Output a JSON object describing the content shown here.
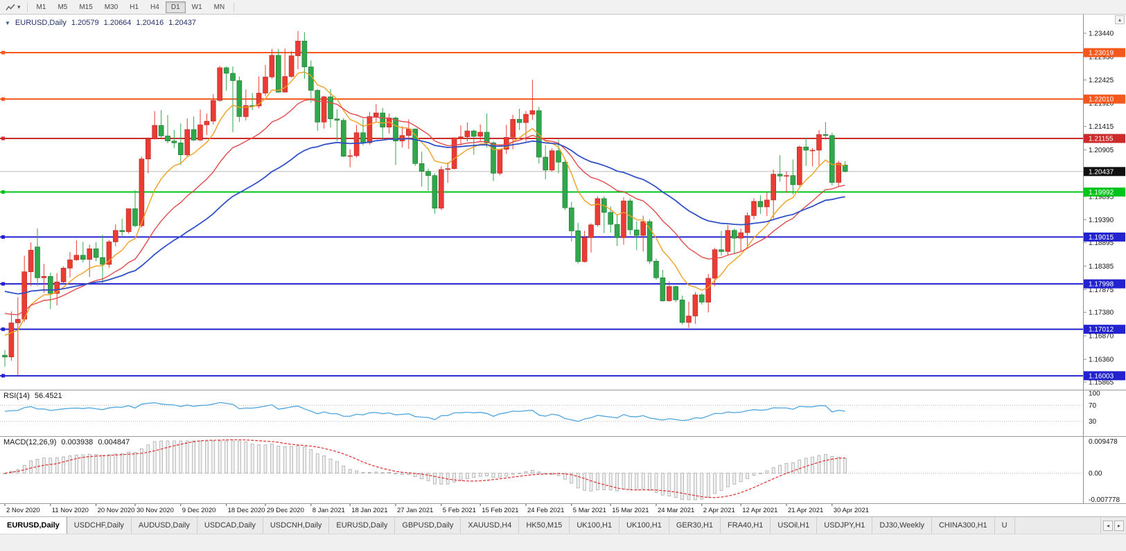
{
  "toolbar": {
    "timeframes": [
      "M1",
      "M5",
      "M15",
      "M30",
      "H1",
      "H4",
      "D1",
      "W1",
      "MN"
    ],
    "active": "D1"
  },
  "icons": {
    "symbol_dropdown": "▼",
    "tool_caret": "▾",
    "scroll_up": "▴",
    "tab_left": "◂",
    "tab_right": "▸"
  },
  "header": {
    "symbol": "EURUSD,Daily",
    "open": "1.20579",
    "high": "1.20664",
    "low": "1.20416",
    "close": "1.20437"
  },
  "chart_data": {
    "type": "candlestick",
    "symbol": "EURUSD",
    "timeframe": "Daily",
    "price_axis_ticks": [
      "1.23440",
      "1.22930",
      "1.22425",
      "1.21920",
      "1.21415",
      "1.20905",
      "1.20400",
      "1.19895",
      "1.19390",
      "1.18895",
      "1.18385",
      "1.17875",
      "1.17380",
      "1.16870",
      "1.16360",
      "1.15865"
    ],
    "current_price": {
      "value": 1.20437,
      "label": "1.20437",
      "color": "#101010"
    },
    "hlines": [
      {
        "value": 1.23019,
        "label": "1.23019",
        "color": "#f4581d"
      },
      {
        "value": 1.2201,
        "label": "1.22010",
        "color": "#f4581d"
      },
      {
        "value": 1.21155,
        "label": "1.21155",
        "color": "#cc2b2b"
      },
      {
        "value": 1.19992,
        "label": "1.19992",
        "color": "#00c41c"
      },
      {
        "value": 1.19015,
        "label": "1.19015",
        "color": "#2222cf"
      },
      {
        "value": 1.17998,
        "label": "1.17998",
        "color": "#2222cf"
      },
      {
        "value": 1.17012,
        "label": "1.17012",
        "color": "#2222cf"
      },
      {
        "value": 1.16003,
        "label": "1.16003",
        "color": "#2222cf"
      }
    ],
    "candle_colors": {
      "up": "#ea3b34",
      "up_border": "#b42a20",
      "down": "#31a74c",
      "down_border": "#1f7434"
    },
    "moving_averages": [
      {
        "name": "ma-fast",
        "color": "#f0a020"
      },
      {
        "name": "ma-medium",
        "color": "#e24a4a"
      },
      {
        "name": "ma-slow",
        "color": "#3050c8"
      }
    ],
    "date_ticks": [
      {
        "label": "2 Nov 2020",
        "i": 0
      },
      {
        "label": "11 Nov 2020",
        "i": 7
      },
      {
        "label": "20 Nov 2020",
        "i": 14
      },
      {
        "label": "30 Nov 2020",
        "i": 20
      },
      {
        "label": "9 Dec 2020",
        "i": 27
      },
      {
        "label": "18 Dec 2020",
        "i": 34
      },
      {
        "label": "29 Dec 2020",
        "i": 40
      },
      {
        "label": "8 Jan 2021",
        "i": 47
      },
      {
        "label": "18 Jan 2021",
        "i": 53
      },
      {
        "label": "27 Jan 2021",
        "i": 60
      },
      {
        "label": "5 Feb 2021",
        "i": 67
      },
      {
        "label": "15 Feb 2021",
        "i": 73
      },
      {
        "label": "24 Feb 2021",
        "i": 80
      },
      {
        "label": "5 Mar 2021",
        "i": 87
      },
      {
        "label": "15 Mar 2021",
        "i": 93
      },
      {
        "label": "24 Mar 2021",
        "i": 100
      },
      {
        "label": "2 Apr 2021",
        "i": 107
      },
      {
        "label": "12 Apr 2021",
        "i": 113
      },
      {
        "label": "21 Apr 2021",
        "i": 120
      },
      {
        "label": "30 Apr 2021",
        "i": 127
      }
    ],
    "candles": [
      [
        1.1645,
        1.1656,
        1.162,
        1.1641
      ],
      [
        1.1641,
        1.174,
        1.1633,
        1.1715
      ],
      [
        1.1715,
        1.1771,
        1.1602,
        1.1723
      ],
      [
        1.1723,
        1.1861,
        1.1717,
        1.1826
      ],
      [
        1.1826,
        1.189,
        1.1795,
        1.1873
      ],
      [
        1.188,
        1.192,
        1.1795,
        1.1813
      ],
      [
        1.1813,
        1.1843,
        1.178,
        1.1816
      ],
      [
        1.1816,
        1.1824,
        1.1745,
        1.1779
      ],
      [
        1.1779,
        1.1823,
        1.1753,
        1.1804
      ],
      [
        1.1804,
        1.1838,
        1.1799,
        1.1834
      ],
      [
        1.1834,
        1.1869,
        1.1814,
        1.1852
      ],
      [
        1.1852,
        1.1894,
        1.185,
        1.1862
      ],
      [
        1.1862,
        1.1891,
        1.1846,
        1.1853
      ],
      [
        1.1853,
        1.1885,
        1.1815,
        1.1876
      ],
      [
        1.1876,
        1.189,
        1.1849,
        1.1857
      ],
      [
        1.1857,
        1.1906,
        1.18,
        1.1842
      ],
      [
        1.1842,
        1.1895,
        1.1835,
        1.1891
      ],
      [
        1.1891,
        1.1929,
        1.1881,
        1.1916
      ],
      [
        1.1916,
        1.1941,
        1.1904,
        1.1913
      ],
      [
        1.1913,
        1.1963,
        1.1909,
        1.1963
      ],
      [
        1.1963,
        1.2003,
        1.1923,
        1.1926
      ],
      [
        1.1926,
        1.2076,
        1.1922,
        1.2071
      ],
      [
        1.2071,
        1.2118,
        1.204,
        1.2115
      ],
      [
        1.2115,
        1.2175,
        1.2113,
        1.2144
      ],
      [
        1.2144,
        1.2177,
        1.2116,
        1.2121
      ],
      [
        1.2121,
        1.2166,
        1.2105,
        1.211
      ],
      [
        1.211,
        1.2134,
        1.2095,
        1.2106
      ],
      [
        1.2106,
        1.2148,
        1.2058,
        1.208
      ],
      [
        1.208,
        1.2159,
        1.2076,
        1.2135
      ],
      [
        1.2135,
        1.2163,
        1.211,
        1.2112
      ],
      [
        1.2112,
        1.2178,
        1.211,
        1.2145
      ],
      [
        1.2145,
        1.217,
        1.2123,
        1.2153
      ],
      [
        1.2153,
        1.2212,
        1.2146,
        1.2198
      ],
      [
        1.2198,
        1.2273,
        1.2195,
        1.2269
      ],
      [
        1.2269,
        1.2272,
        1.2219,
        1.2257
      ],
      [
        1.2257,
        1.2272,
        1.2129,
        1.2241
      ],
      [
        1.2241,
        1.225,
        1.2151,
        1.2163
      ],
      [
        1.2163,
        1.2222,
        1.2155,
        1.2187
      ],
      [
        1.2187,
        1.2214,
        1.2177,
        1.2186
      ],
      [
        1.2186,
        1.225,
        1.2181,
        1.2214
      ],
      [
        1.2214,
        1.2275,
        1.2208,
        1.2249
      ],
      [
        1.2249,
        1.231,
        1.2245,
        1.2296
      ],
      [
        1.2296,
        1.231,
        1.2214,
        1.2216
      ],
      [
        1.2216,
        1.2311,
        1.2216,
        1.225
      ],
      [
        1.225,
        1.2305,
        1.2247,
        1.2295
      ],
      [
        1.2295,
        1.2349,
        1.2266,
        1.2327
      ],
      [
        1.2327,
        1.2346,
        1.2245,
        1.2271
      ],
      [
        1.2271,
        1.2285,
        1.2193,
        1.222
      ],
      [
        1.222,
        1.2223,
        1.2132,
        1.2151
      ],
      [
        1.2151,
        1.2208,
        1.2137,
        1.2206
      ],
      [
        1.2206,
        1.2223,
        1.2139,
        1.2158
      ],
      [
        1.2158,
        1.2179,
        1.211,
        1.2155
      ],
      [
        1.2155,
        1.216,
        1.2075,
        1.2077
      ],
      [
        1.2077,
        1.2092,
        1.2053,
        1.2078
      ],
      [
        1.2078,
        1.2145,
        1.2074,
        1.2128
      ],
      [
        1.2128,
        1.2158,
        1.2101,
        1.2106
      ],
      [
        1.2106,
        1.2173,
        1.2102,
        1.2163
      ],
      [
        1.2163,
        1.219,
        1.215,
        1.2171
      ],
      [
        1.2171,
        1.2182,
        1.2116,
        1.214
      ],
      [
        1.214,
        1.217,
        1.2126,
        1.216
      ],
      [
        1.216,
        1.2163,
        1.2058,
        1.211
      ],
      [
        1.211,
        1.2142,
        1.2096,
        1.2122
      ],
      [
        1.2122,
        1.2157,
        1.2093,
        1.2136
      ],
      [
        1.2136,
        1.2137,
        1.2056,
        1.2061
      ],
      [
        1.2061,
        1.2087,
        1.2011,
        1.2044
      ],
      [
        1.2044,
        1.205,
        1.2002,
        1.2035
      ],
      [
        1.2035,
        1.204,
        1.1952,
        1.1964
      ],
      [
        1.1964,
        1.2055,
        1.196,
        1.2048
      ],
      [
        1.2048,
        1.2064,
        1.2019,
        1.205
      ],
      [
        1.205,
        1.2118,
        1.2048,
        1.2117
      ],
      [
        1.2117,
        1.2144,
        1.21,
        1.2119
      ],
      [
        1.2119,
        1.215,
        1.2109,
        1.2132
      ],
      [
        1.2132,
        1.2135,
        1.208,
        1.212
      ],
      [
        1.212,
        1.2146,
        1.211,
        1.2129
      ],
      [
        1.2129,
        1.217,
        1.2096,
        1.2106
      ],
      [
        1.2106,
        1.211,
        1.2023,
        1.204
      ],
      [
        1.204,
        1.2092,
        1.2036,
        1.2092
      ],
      [
        1.2092,
        1.2145,
        1.2082,
        1.2118
      ],
      [
        1.2118,
        1.2167,
        1.2092,
        1.2157
      ],
      [
        1.2157,
        1.218,
        1.2134,
        1.215
      ],
      [
        1.215,
        1.2175,
        1.2109,
        1.2168
      ],
      [
        1.2168,
        1.2243,
        1.2156,
        1.2176
      ],
      [
        1.2176,
        1.2184,
        1.2061,
        1.2075
      ],
      [
        1.2075,
        1.2101,
        1.2027,
        1.2047
      ],
      [
        1.2047,
        1.2094,
        1.2043,
        1.2089
      ],
      [
        1.2089,
        1.2113,
        1.204,
        1.2064
      ],
      [
        1.2064,
        1.207,
        1.196,
        1.1965
      ],
      [
        1.1965,
        1.1978,
        1.1892,
        1.1915
      ],
      [
        1.1915,
        1.1932,
        1.1844,
        1.1848
      ],
      [
        1.1848,
        1.1915,
        1.1846,
        1.19
      ],
      [
        1.19,
        1.1931,
        1.1868,
        1.1928
      ],
      [
        1.1928,
        1.199,
        1.1924,
        1.1985
      ],
      [
        1.1985,
        1.199,
        1.191,
        1.1955
      ],
      [
        1.1955,
        1.1968,
        1.1911,
        1.1929
      ],
      [
        1.1929,
        1.195,
        1.1882,
        1.19
      ],
      [
        1.19,
        1.1988,
        1.1885,
        1.198
      ],
      [
        1.198,
        1.1985,
        1.1906,
        1.1917
      ],
      [
        1.1917,
        1.1936,
        1.1873,
        1.1905
      ],
      [
        1.1905,
        1.1948,
        1.187,
        1.1935
      ],
      [
        1.1935,
        1.194,
        1.1843,
        1.1849
      ],
      [
        1.1849,
        1.1855,
        1.1809,
        1.1813
      ],
      [
        1.1813,
        1.183,
        1.1761,
        1.1763
      ],
      [
        1.1763,
        1.1805,
        1.1761,
        1.1794
      ],
      [
        1.1794,
        1.1796,
        1.176,
        1.1765
      ],
      [
        1.1765,
        1.1774,
        1.1712,
        1.1716
      ],
      [
        1.1716,
        1.1761,
        1.1704,
        1.173
      ],
      [
        1.173,
        1.1782,
        1.1713,
        1.1776
      ],
      [
        1.1776,
        1.178,
        1.1755,
        1.176
      ],
      [
        1.176,
        1.1821,
        1.1738,
        1.1812
      ],
      [
        1.1812,
        1.1878,
        1.1795,
        1.1874
      ],
      [
        1.1874,
        1.1915,
        1.1861,
        1.187
      ],
      [
        1.187,
        1.1928,
        1.1861,
        1.1916
      ],
      [
        1.1916,
        1.192,
        1.1866,
        1.1899
      ],
      [
        1.1899,
        1.192,
        1.1871,
        1.1911
      ],
      [
        1.1911,
        1.1955,
        1.1878,
        1.1948
      ],
      [
        1.1948,
        1.1986,
        1.194,
        1.1979
      ],
      [
        1.1979,
        1.1992,
        1.1952,
        1.1967
      ],
      [
        1.1967,
        1.1998,
        1.1947,
        1.1982
      ],
      [
        1.1982,
        1.2048,
        1.1942,
        1.2038
      ],
      [
        1.2038,
        1.2079,
        1.2022,
        1.2034
      ],
      [
        1.2034,
        1.2044,
        1.1998,
        1.2035
      ],
      [
        1.2035,
        1.207,
        1.1994,
        1.2015
      ],
      [
        1.2015,
        1.21,
        1.2012,
        1.2097
      ],
      [
        1.2097,
        1.2117,
        1.2056,
        1.209
      ],
      [
        1.209,
        1.2095,
        1.2055,
        1.209
      ],
      [
        1.209,
        1.2134,
        1.2057,
        1.2124
      ],
      [
        1.2124,
        1.2151,
        1.2113,
        1.2122
      ],
      [
        1.2122,
        1.2128,
        1.2013,
        1.202
      ],
      [
        1.202,
        1.2067,
        1.2012,
        1.2062
      ],
      [
        1.20579,
        1.20664,
        1.20416,
        1.20437
      ]
    ],
    "rsi": {
      "label": "RSI(14)",
      "value": "56.4521",
      "period": 14,
      "levels": [
        "100",
        "70",
        "30"
      ],
      "color": "#4da6dd"
    },
    "macd": {
      "label": "MACD(12,26,9)",
      "main_value": "0.003938",
      "signal_value": "0.004847",
      "axis_labels": [
        "0.009478",
        "0.00",
        "-0.007778"
      ],
      "bar_fill": "#efefef",
      "bar_border": "#a0a0a0",
      "signal_color": "#dd2f2f"
    }
  },
  "tabs": {
    "items": [
      {
        "label": "EURUSD,Daily",
        "active": true
      },
      {
        "label": "USDCHF,Daily"
      },
      {
        "label": "AUDUSD,Daily"
      },
      {
        "label": "USDCAD,Daily"
      },
      {
        "label": "USDCNH,Daily"
      },
      {
        "label": "EURUSD,Daily"
      },
      {
        "label": "GBPUSD,Daily"
      },
      {
        "label": "XAUUSD,H4"
      },
      {
        "label": "HK50,M15"
      },
      {
        "label": "UK100,H1"
      },
      {
        "label": "UK100,H1"
      },
      {
        "label": "GER30,H1"
      },
      {
        "label": "FRA40,H1"
      },
      {
        "label": "USOil,H1"
      },
      {
        "label": "USDJPY,H1"
      },
      {
        "label": "DJ30,Weekly"
      },
      {
        "label": "CHINA300,H1"
      },
      {
        "label": "U"
      }
    ]
  }
}
